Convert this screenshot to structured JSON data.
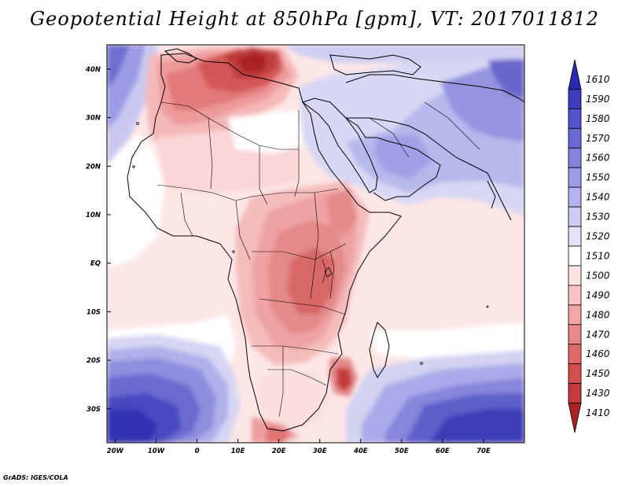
{
  "title": "Geopotential Height at 850hPa [gpm], VT: 2017011812",
  "credit": "GrADS: IGES/COLA",
  "map": {
    "variable": "Geopotential Height at 850hPa",
    "units": "gpm",
    "valid_time": "2017011812",
    "region": "Africa and surrounding seas",
    "lon_range": [
      -22,
      80
    ],
    "lat_range": [
      -37,
      45
    ],
    "x_ticks": [
      {
        "lon": -20,
        "label": "20W"
      },
      {
        "lon": -10,
        "label": "10W"
      },
      {
        "lon": 0,
        "label": "0"
      },
      {
        "lon": 10,
        "label": "10E"
      },
      {
        "lon": 20,
        "label": "20E"
      },
      {
        "lon": 30,
        "label": "30E"
      },
      {
        "lon": 40,
        "label": "40E"
      },
      {
        "lon": 50,
        "label": "50E"
      },
      {
        "lon": 60,
        "label": "60E"
      },
      {
        "lon": 70,
        "label": "70E"
      }
    ],
    "y_ticks": [
      {
        "lat": 40,
        "label": "40N"
      },
      {
        "lat": 30,
        "label": "30N"
      },
      {
        "lat": 20,
        "label": "20N"
      },
      {
        "lat": 10,
        "label": "10N"
      },
      {
        "lat": 0,
        "label": "EQ"
      },
      {
        "lat": -10,
        "label": "10S"
      },
      {
        "lat": -20,
        "label": "20S"
      },
      {
        "lat": -30,
        "label": "30S"
      }
    ],
    "features": [
      {
        "name": "Mediterranean low-height core",
        "lon": 14,
        "lat": 38,
        "value": 1430
      },
      {
        "name": "Northwest Africa trough",
        "lon": 2,
        "lat": 32,
        "value": 1470
      },
      {
        "name": "Central-East Africa low heights",
        "lon": 24,
        "lat": -6,
        "value": 1480
      },
      {
        "name": "Mozambique Channel low",
        "lon": 36,
        "lat": -24,
        "value": 1450
      },
      {
        "name": "Arabia / Iran high",
        "lon": 58,
        "lat": 30,
        "value": 1560
      },
      {
        "name": "South Atlantic high",
        "lon": -15,
        "lat": -32,
        "value": 1580
      },
      {
        "name": "South Indian Ocean high",
        "lon": 66,
        "lat": -32,
        "value": 1580
      }
    ]
  },
  "colorbar": {
    "labels": [
      "1610",
      "1590",
      "1580",
      "1570",
      "1560",
      "1550",
      "1540",
      "1530",
      "1520",
      "1510",
      "1500",
      "1490",
      "1480",
      "1470",
      "1460",
      "1450",
      "1430",
      "1410"
    ],
    "colors": [
      "#2a2ab2",
      "#3c3cc0",
      "#5454cc",
      "#6a6ad6",
      "#8484de",
      "#9c9ce6",
      "#b4b4ee",
      "#ccccf4",
      "#e4e4f8",
      "#ffffff",
      "#fde4e4",
      "#f8c4c4",
      "#f2a6a6",
      "#ea8888",
      "#e06a6a",
      "#d44e4e",
      "#c43a3a",
      "#a82424"
    ]
  }
}
